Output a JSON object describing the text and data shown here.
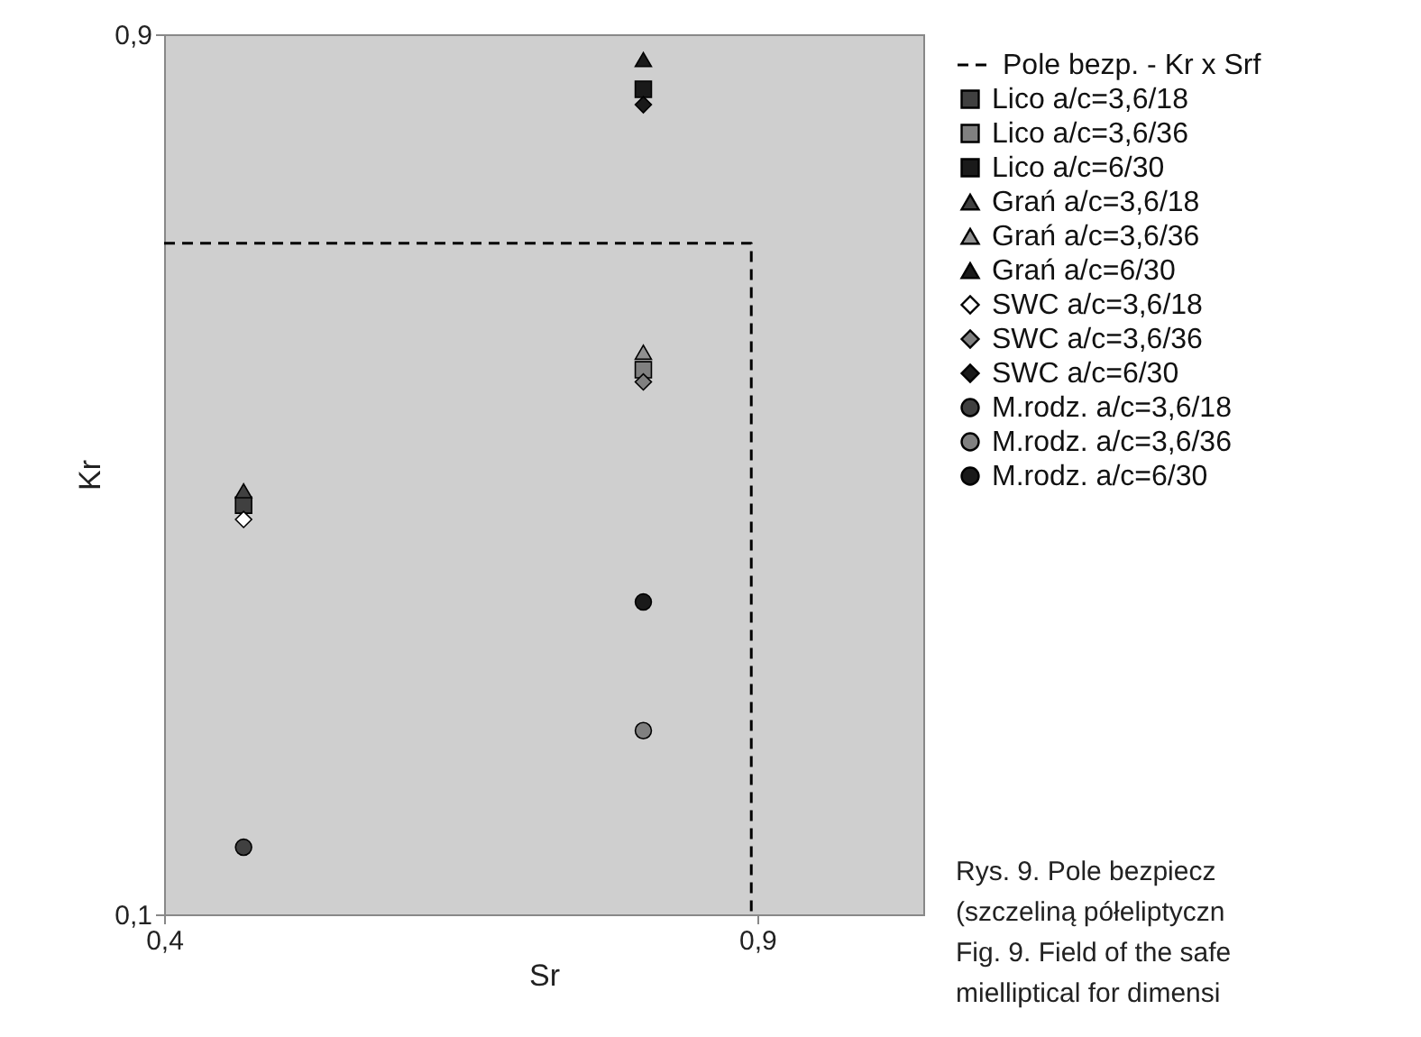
{
  "chart_data": {
    "type": "scatter",
    "xlabel": "Sr",
    "ylabel": "Kr",
    "xlim": [
      0.4,
      1.04
    ],
    "xticks": [
      {
        "value": 0.4,
        "label": "0,4"
      },
      {
        "value": 0.9,
        "label": "0,9"
      }
    ],
    "ylim": [
      0.1,
      0.9
    ],
    "yticks": [
      {
        "value": 0.1,
        "label": "0,1"
      },
      {
        "value": 0.9,
        "label": "0,9"
      }
    ],
    "grid": false,
    "legend": "right",
    "series": [
      {
        "name": "Pole bezp. -  Kr x Srf",
        "type": "line",
        "line_style": "dashed",
        "color": "#000000",
        "x": [
          0.4,
          0.895,
          0.895
        ],
        "values": [
          0.71,
          0.71,
          0.1
        ]
      },
      {
        "name": "Lico a/c=3,6/18",
        "marker": "square",
        "color": "#404040",
        "x": [
          0.467
        ],
        "values": [
          0.472
        ]
      },
      {
        "name": "Lico a/c=3,6/36",
        "marker": "square",
        "color": "#808080",
        "x": [
          0.804
        ],
        "values": [
          0.595
        ]
      },
      {
        "name": "Lico a/c=6/30",
        "marker": "square",
        "color": "#1a1a1a",
        "x": [
          0.804
        ],
        "values": [
          0.85
        ]
      },
      {
        "name": "Grań a/c=3,6/18",
        "marker": "triangle",
        "color": "#404040",
        "x": [
          0.467
        ],
        "values": [
          0.485
        ]
      },
      {
        "name": "Grań a/c=3,6/36",
        "marker": "triangle",
        "color": "#909090",
        "x": [
          0.804
        ],
        "values": [
          0.611
        ]
      },
      {
        "name": "Grań a/c=6/30",
        "marker": "triangle",
        "color": "#1a1a1a",
        "x": [
          0.804
        ],
        "values": [
          0.877
        ]
      },
      {
        "name": "SWC a/c=3,6/18",
        "marker": "diamond",
        "color": "#ffffff",
        "x": [
          0.467
        ],
        "values": [
          0.459
        ]
      },
      {
        "name": "SWC a/c=3,6/36",
        "marker": "diamond",
        "color": "#808080",
        "x": [
          0.804
        ],
        "values": [
          0.584
        ]
      },
      {
        "name": "SWC a/c=6/30",
        "marker": "diamond",
        "color": "#1a1a1a",
        "x": [
          0.804
        ],
        "values": [
          0.836
        ]
      },
      {
        "name": "M.rodz. a/c=3,6/18",
        "marker": "circle",
        "color": "#404040",
        "x": [
          0.467
        ],
        "values": [
          0.161
        ]
      },
      {
        "name": "M.rodz. a/c=3,6/36",
        "marker": "circle",
        "color": "#808080",
        "x": [
          0.804
        ],
        "values": [
          0.267
        ]
      },
      {
        "name": "M.rodz. a/c=6/30",
        "marker": "circle",
        "color": "#1a1a1a",
        "x": [
          0.804
        ],
        "values": [
          0.384
        ]
      }
    ],
    "annotations": [
      "Rys. 9. Pole bezpiecz",
      "(szczeliną półeliptyczn",
      "Fig. 9. Field of the safe",
      "mielliptical for dimensi"
    ]
  }
}
